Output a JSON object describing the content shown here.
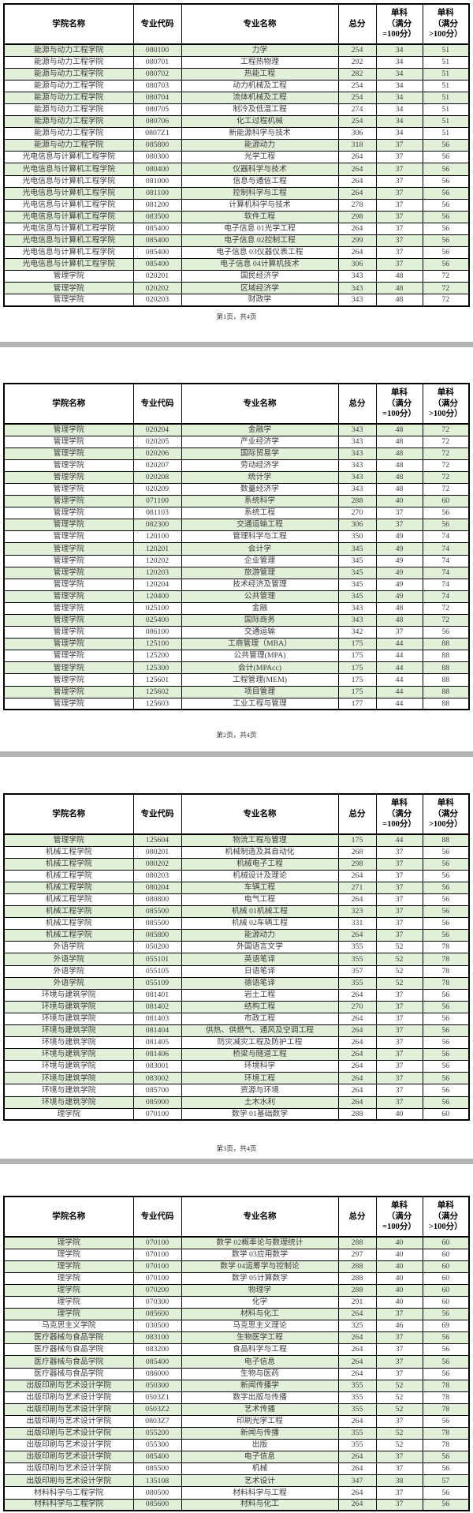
{
  "document": {
    "type": "score-line-table",
    "colors": {
      "row_alt_green": "#e2efd9",
      "page_separator_gray": "#b3b3b3",
      "body_text": "#3d3d3d"
    }
  },
  "columns": [
    "学院名称",
    "专业代码",
    "专业名称",
    "总分",
    "单科\n（满分\n=100分）",
    "单科\n（满分\n>100分）"
  ],
  "pages": [
    {
      "footer": "第1页，共4页",
      "rows": [
        [
          "能源与动力工程学院",
          "080100",
          "力学",
          "254",
          "34",
          "51"
        ],
        [
          "能源与动力工程学院",
          "080701",
          "工程热物理",
          "292",
          "34",
          "51"
        ],
        [
          "能源与动力工程学院",
          "080702",
          "热能工程",
          "282",
          "34",
          "51"
        ],
        [
          "能源与动力工程学院",
          "080703",
          "动力机械及工程",
          "254",
          "34",
          "51"
        ],
        [
          "能源与动力工程学院",
          "080704",
          "流体机械及工程",
          "254",
          "34",
          "51"
        ],
        [
          "能源与动力工程学院",
          "080705",
          "制冷及低温工程",
          "274",
          "34",
          "51"
        ],
        [
          "能源与动力工程学院",
          "080706",
          "化工过程机械",
          "254",
          "34",
          "51"
        ],
        [
          "能源与动力工程学院",
          "0807Z1",
          "新能源科学与技术",
          "306",
          "34",
          "51"
        ],
        [
          "能源与动力工程学院",
          "085800",
          "能源动力",
          "318",
          "37",
          "56"
        ],
        [
          "光电信息与计算机工程学院",
          "080300",
          "光学工程",
          "264",
          "37",
          "56"
        ],
        [
          "光电信息与计算机工程学院",
          "080400",
          "仪器科学与技术",
          "264",
          "37",
          "56"
        ],
        [
          "光电信息与计算机工程学院",
          "081000",
          "信息与通信工程",
          "264",
          "37",
          "56"
        ],
        [
          "光电信息与计算机工程学院",
          "081100",
          "控制科学与工程",
          "264",
          "37",
          "56"
        ],
        [
          "光电信息与计算机工程学院",
          "081200",
          "计算机科学与技术",
          "278",
          "37",
          "56"
        ],
        [
          "光电信息与计算机工程学院",
          "083500",
          "软件工程",
          "298",
          "37",
          "56"
        ],
        [
          "光电信息与计算机工程学院",
          "085400",
          "电子信息 01光学工程",
          "264",
          "37",
          "56"
        ],
        [
          "光电信息与计算机工程学院",
          "085400",
          "电子信息 02控制工程",
          "299",
          "37",
          "56"
        ],
        [
          "光电信息与计算机工程学院",
          "085400",
          "电子信息 03仪器仪表工程",
          "264",
          "37",
          "56"
        ],
        [
          "光电信息与计算机工程学院",
          "085400",
          "电子信息 04计算机技术",
          "306",
          "37",
          "56"
        ],
        [
          "管理学院",
          "020201",
          "国民经济学",
          "343",
          "48",
          "72"
        ],
        [
          "管理学院",
          "020202",
          "区域经济学",
          "343",
          "48",
          "72"
        ],
        [
          "管理学院",
          "020203",
          "财政学",
          "343",
          "48",
          "72"
        ]
      ]
    },
    {
      "footer": "第2页，共4页",
      "rows": [
        [
          "管理学院",
          "020204",
          "金融学",
          "343",
          "48",
          "72"
        ],
        [
          "管理学院",
          "020205",
          "产业经济学",
          "343",
          "48",
          "72"
        ],
        [
          "管理学院",
          "020206",
          "国际贸易学",
          "343",
          "48",
          "72"
        ],
        [
          "管理学院",
          "020207",
          "劳动经济学",
          "343",
          "48",
          "72"
        ],
        [
          "管理学院",
          "020208",
          "统计学",
          "343",
          "48",
          "72"
        ],
        [
          "管理学院",
          "020209",
          "数量经济学",
          "343",
          "48",
          "72"
        ],
        [
          "管理学院",
          "071100",
          "系统科学",
          "288",
          "40",
          "60"
        ],
        [
          "管理学院",
          "081103",
          "系统工程",
          "270",
          "37",
          "56"
        ],
        [
          "管理学院",
          "082300",
          "交通运输工程",
          "306",
          "37",
          "56"
        ],
        [
          "管理学院",
          "120100",
          "管理科学与工程",
          "350",
          "49",
          "74"
        ],
        [
          "管理学院",
          "120201",
          "会计学",
          "345",
          "49",
          "74"
        ],
        [
          "管理学院",
          "120202",
          "企业管理",
          "345",
          "49",
          "74"
        ],
        [
          "管理学院",
          "120203",
          "旅游管理",
          "345",
          "49",
          "74"
        ],
        [
          "管理学院",
          "120204",
          "技术经济及管理",
          "345",
          "49",
          "74"
        ],
        [
          "管理学院",
          "120400",
          "公共管理",
          "345",
          "49",
          "74"
        ],
        [
          "管理学院",
          "025100",
          "金融",
          "343",
          "48",
          "72"
        ],
        [
          "管理学院",
          "025400",
          "国际商务",
          "343",
          "48",
          "72"
        ],
        [
          "管理学院",
          "086100",
          "交通运输",
          "342",
          "37",
          "56"
        ],
        [
          "管理学院",
          "125100",
          "工商管理（MBA）",
          "175",
          "44",
          "88"
        ],
        [
          "管理学院",
          "125200",
          "公共管理(MPA)",
          "175",
          "44",
          "88"
        ],
        [
          "管理学院",
          "125300",
          "会计(MPAcc)",
          "175",
          "44",
          "88"
        ],
        [
          "管理学院",
          "125601",
          "工程管理(MEM)",
          "175",
          "44",
          "88"
        ],
        [
          "管理学院",
          "125602",
          "项目管理",
          "175",
          "44",
          "88"
        ],
        [
          "管理学院",
          "125603",
          "工业工程与管理",
          "177",
          "44",
          "88"
        ]
      ]
    },
    {
      "footer": "第3页，共4页",
      "rows": [
        [
          "管理学院",
          "125604",
          "物流工程与管理",
          "175",
          "44",
          "88"
        ],
        [
          "机械工程学院",
          "080201",
          "机械制造及其自动化",
          "268",
          "37",
          "56"
        ],
        [
          "机械工程学院",
          "080202",
          "机械电子工程",
          "298",
          "37",
          "56"
        ],
        [
          "机械工程学院",
          "080203",
          "机械设计及理论",
          "264",
          "37",
          "56"
        ],
        [
          "机械工程学院",
          "080204",
          "车辆工程",
          "271",
          "37",
          "56"
        ],
        [
          "机械工程学院",
          "080800",
          "电气工程",
          "264",
          "37",
          "56"
        ],
        [
          "机械工程学院",
          "085500",
          "机械 01机械工程",
          "323",
          "37",
          "56"
        ],
        [
          "机械工程学院",
          "085500",
          "机械 02车辆工程",
          "331",
          "37",
          "56"
        ],
        [
          "机械工程学院",
          "085800",
          "能源动力",
          "264",
          "37",
          "56"
        ],
        [
          "外语学院",
          "050200",
          "外国语言文学",
          "355",
          "52",
          "78"
        ],
        [
          "外语学院",
          "055101",
          "英语笔译",
          "355",
          "52",
          "78"
        ],
        [
          "外语学院",
          "055105",
          "日语笔译",
          "357",
          "52",
          "78"
        ],
        [
          "外语学院",
          "055109",
          "德语笔译",
          "355",
          "52",
          "78"
        ],
        [
          "环境与建筑学院",
          "081401",
          "岩土工程",
          "264",
          "37",
          "56"
        ],
        [
          "环境与建筑学院",
          "081402",
          "结构工程",
          "270",
          "37",
          "56"
        ],
        [
          "环境与建筑学院",
          "081403",
          "市政工程",
          "264",
          "37",
          "56"
        ],
        [
          "环境与建筑学院",
          "081404",
          "供热、供燃气、通风及空调工程",
          "264",
          "37",
          "56"
        ],
        [
          "环境与建筑学院",
          "081405",
          "防灾减灾工程及防护工程",
          "264",
          "37",
          "56"
        ],
        [
          "环境与建筑学院",
          "081406",
          "桥梁与隧道工程",
          "264",
          "37",
          "56"
        ],
        [
          "环境与建筑学院",
          "083001",
          "环境科学",
          "264",
          "37",
          "56"
        ],
        [
          "环境与建筑学院",
          "083002",
          "环境工程",
          "264",
          "37",
          "56"
        ],
        [
          "环境与建筑学院",
          "085700",
          "资源与环境",
          "264",
          "37",
          "56"
        ],
        [
          "环境与建筑学院",
          "085900",
          "土木水利",
          "264",
          "37",
          "56"
        ],
        [
          "理学院",
          "070100",
          "数学 01基础数学",
          "288",
          "40",
          "60"
        ]
      ]
    },
    {
      "rows": [
        [
          "理学院",
          "070100",
          "数学 02概率论与数理统计",
          "288",
          "40",
          "60"
        ],
        [
          "理学院",
          "070100",
          "数学 03应用数学",
          "297",
          "40",
          "60"
        ],
        [
          "理学院",
          "070100",
          "数学 04运筹学与控制论",
          "288",
          "40",
          "60"
        ],
        [
          "理学院",
          "070100",
          "数学 05计算数学",
          "288",
          "40",
          "60"
        ],
        [
          "理学院",
          "070200",
          "物理学",
          "288",
          "40",
          "60"
        ],
        [
          "理学院",
          "070300",
          "化学",
          "291",
          "40",
          "60"
        ],
        [
          "理学院",
          "085600",
          "材料与化工",
          "264",
          "37",
          "56"
        ],
        [
          "马克思主义学院",
          "030500",
          "马克思主义理论",
          "325",
          "46",
          "69"
        ],
        [
          "医疗器械与食品学院",
          "083100",
          "生物医学工程",
          "264",
          "37",
          "56"
        ],
        [
          "医疗器械与食品学院",
          "083200",
          "食品科学与工程",
          "264",
          "37",
          "56"
        ],
        [
          "医疗器械与食品学院",
          "085400",
          "电子信息",
          "264",
          "37",
          "56"
        ],
        [
          "医疗器械与食品学院",
          "086000",
          "生物与医药",
          "264",
          "37",
          "56"
        ],
        [
          "出版印刷与艺术设计学院",
          "050300",
          "新闻传播学",
          "355",
          "52",
          "78"
        ],
        [
          "出版印刷与艺术设计学院",
          "0503Z1",
          "数字出版与传播",
          "355",
          "52",
          "78"
        ],
        [
          "出版印刷与艺术设计学院",
          "0503Z2",
          "艺术传播",
          "355",
          "52",
          "78"
        ],
        [
          "出版印刷与艺术设计学院",
          "0803Z7",
          "印刷光学工程",
          "264",
          "37",
          "56"
        ],
        [
          "出版印刷与艺术设计学院",
          "055200",
          "新闻与传播",
          "355",
          "52",
          "78"
        ],
        [
          "出版印刷与艺术设计学院",
          "055300",
          "出版",
          "355",
          "52",
          "78"
        ],
        [
          "出版印刷与艺术设计学院",
          "085400",
          "电子信息",
          "264",
          "37",
          "56"
        ],
        [
          "出版印刷与艺术设计学院",
          "085500",
          "机械",
          "264",
          "37",
          "56"
        ],
        [
          "出版印刷与艺术设计学院",
          "135108",
          "艺术设计",
          "347",
          "38",
          "57"
        ],
        [
          "材料科学与工程学院",
          "080500",
          "材料科学与工程",
          "264",
          "37",
          "56"
        ],
        [
          "材料科学与工程学院",
          "085600",
          "材料与化工",
          "264",
          "37",
          "56"
        ]
      ]
    }
  ]
}
